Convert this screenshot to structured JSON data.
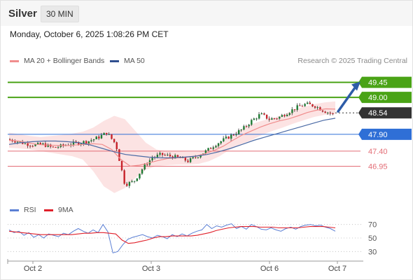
{
  "header": {
    "symbol": "Silver",
    "timeframe": "30 MIN"
  },
  "timestamp": "Monday, October 6, 2025 1:08:26 PM CET",
  "legend": {
    "items": [
      {
        "label": "MA 20 + Bollinger Bands",
        "color": "#f08d8d"
      },
      {
        "label": "MA 50",
        "color": "#2f4f8f"
      }
    ]
  },
  "credit": "Research © 2025 Trading Central",
  "rsi_legend": {
    "items": [
      {
        "label": "RSI",
        "color": "#5b7fd4"
      },
      {
        "label": "9MA",
        "color": "#e0202a"
      }
    ]
  },
  "chart_data": [
    {
      "type": "candlestick",
      "x_tick_labels": [
        "Oct 2",
        "Oct 3",
        "Oct 6",
        "Oct 7"
      ],
      "ylim": [
        46.0,
        49.9
      ],
      "current_price": 48.54,
      "price_path": [
        47.75,
        47.7,
        47.62,
        47.58,
        47.6,
        47.5,
        47.55,
        47.62,
        47.65,
        47.7,
        47.8,
        47.95,
        47.6,
        46.4,
        46.5,
        46.9,
        47.2,
        47.3,
        47.25,
        47.2,
        47.1,
        47.25,
        47.4,
        47.6,
        47.75,
        47.9,
        48.05,
        48.3,
        48.5,
        48.35,
        48.4,
        48.55,
        48.7,
        48.8,
        48.75,
        48.6,
        48.5
      ],
      "ma20": [
        47.72,
        47.7,
        47.65,
        47.6,
        47.58,
        47.57,
        47.56,
        47.58,
        47.6,
        47.62,
        47.6,
        47.45,
        47.15,
        46.95,
        46.98,
        47.05,
        47.12,
        47.18,
        47.2,
        47.22,
        47.25,
        47.32,
        47.42,
        47.55,
        47.72,
        47.88,
        48.0,
        48.12,
        48.22,
        48.3,
        48.36,
        48.45,
        48.55,
        48.62,
        48.66,
        48.65
      ],
      "bb_upper": [
        47.95,
        47.9,
        47.85,
        47.82,
        47.85,
        47.88,
        47.92,
        47.98,
        48.1,
        48.3,
        48.45,
        48.35,
        48.0,
        47.65,
        47.45,
        47.4,
        47.4,
        47.38,
        47.38,
        47.45,
        47.62,
        47.85,
        48.05,
        48.2,
        48.3,
        48.38,
        48.48,
        48.62,
        48.72,
        48.8,
        48.85,
        48.88
      ],
      "bb_lower": [
        47.5,
        47.48,
        47.45,
        47.4,
        47.35,
        47.3,
        47.25,
        47.15,
        46.8,
        46.35,
        46.15,
        46.3,
        46.6,
        46.85,
        46.95,
        46.98,
        47.0,
        47.0,
        47.02,
        47.1,
        47.25,
        47.45,
        47.6,
        47.72,
        47.88,
        48.0,
        48.1,
        48.22,
        48.32,
        48.42,
        48.48,
        48.5
      ],
      "ma50": [
        47.6,
        47.65,
        47.68,
        47.7,
        47.7,
        47.68,
        47.65,
        47.58,
        47.48,
        47.38,
        47.3,
        47.26,
        47.22,
        47.2,
        47.2,
        47.22,
        47.25,
        47.3,
        47.38,
        47.48,
        47.6,
        47.72,
        47.82,
        47.92,
        48.02,
        48.12,
        48.22,
        48.32,
        48.38
      ],
      "levels": [
        {
          "value": 49.45,
          "label": "49.45",
          "style": "resistance",
          "color": "#4aa316"
        },
        {
          "value": 49.0,
          "label": "49.00",
          "style": "resistance",
          "color": "#4aa316"
        },
        {
          "value": 48.54,
          "label": "48.54",
          "style": "price",
          "color": "#333333"
        },
        {
          "value": 47.9,
          "label": "47.90",
          "style": "pivot",
          "color": "#2f6fd6"
        },
        {
          "value": 47.4,
          "label": "47.40",
          "style": "support",
          "color": "#e36d76"
        },
        {
          "value": 46.95,
          "label": "46.95",
          "style": "support",
          "color": "#e36d76"
        }
      ],
      "projection": {
        "from": 48.54,
        "to": 49.45,
        "color": "#2d5ca8"
      }
    },
    {
      "type": "line",
      "indicator": "RSI",
      "ylim": [
        20,
        80
      ],
      "y_ticks": [
        70,
        50,
        30
      ],
      "x_tick_labels": [
        "Oct 2",
        "Oct 3",
        "Oct 6",
        "Oct 7"
      ],
      "series": [
        {
          "name": "RSI",
          "color": "#5b7fd4",
          "values": [
            62,
            58,
            60,
            54,
            58,
            51,
            55,
            50,
            56,
            54,
            52,
            57,
            55,
            60,
            64,
            60,
            57,
            62,
            58,
            70,
            59,
            28,
            30,
            40,
            48,
            51,
            53,
            55,
            52,
            50,
            54,
            52,
            49,
            55,
            52,
            56,
            53,
            57,
            60,
            62,
            70,
            64,
            68,
            66,
            69,
            71,
            64,
            67,
            63,
            70,
            67,
            63,
            62,
            65,
            62,
            60,
            64,
            66,
            63,
            67,
            69,
            70,
            68,
            69,
            66,
            64,
            60
          ]
        },
        {
          "name": "9MA",
          "color": "#e0202a",
          "values": [
            60,
            59,
            58,
            57,
            56,
            55,
            55,
            55,
            55,
            55,
            55,
            56,
            57,
            57,
            58,
            58,
            57,
            56,
            47,
            42,
            43,
            45,
            47,
            50,
            52,
            52,
            53,
            53,
            53,
            53,
            54,
            56,
            58,
            61,
            63,
            65,
            66,
            67,
            67,
            67,
            66,
            66,
            66,
            65,
            65,
            65,
            65,
            66,
            67,
            67,
            67,
            66,
            65
          ]
        }
      ]
    }
  ]
}
